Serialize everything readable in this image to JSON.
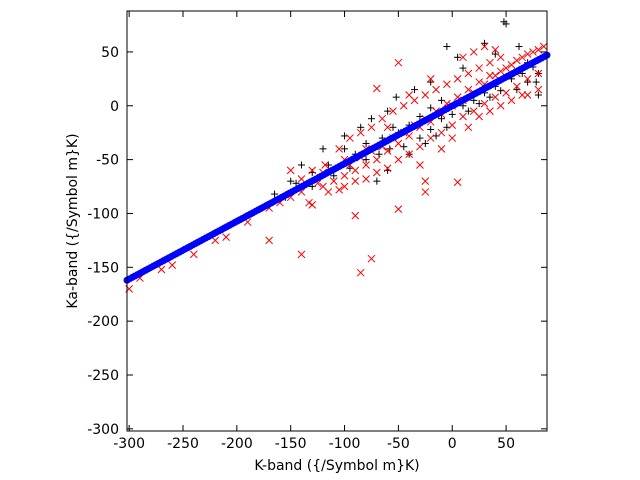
{
  "chart_data": {
    "type": "scatter",
    "title": "",
    "xlabel": "K-band ({/Symbol m}K)",
    "ylabel": "Ka-band ({/Symbol m}K)",
    "xlim": [
      -302,
      88
    ],
    "ylim": [
      -302,
      88
    ],
    "xticks": [
      -300,
      -250,
      -200,
      -150,
      -100,
      -50,
      0,
      50
    ],
    "yticks": [
      -300,
      -250,
      -200,
      -150,
      -100,
      -50,
      0,
      50
    ],
    "grid": false,
    "legend": "none",
    "series": [
      {
        "marker": "plus",
        "color": "#000000",
        "points": [
          [
            48,
            78
          ],
          [
            50,
            76
          ],
          [
            30,
            58
          ],
          [
            40,
            48
          ],
          [
            62,
            55
          ],
          [
            70,
            40
          ],
          [
            78,
            22
          ],
          [
            80,
            10
          ],
          [
            -5,
            55
          ],
          [
            5,
            45
          ],
          [
            10,
            35
          ],
          [
            -20,
            22
          ],
          [
            -35,
            15
          ],
          [
            -52,
            8
          ],
          [
            -60,
            -5
          ],
          [
            -75,
            -12
          ],
          [
            -85,
            -20
          ],
          [
            -100,
            -28
          ],
          [
            -120,
            -40
          ],
          [
            -140,
            -55
          ],
          [
            -150,
            -70
          ],
          [
            -165,
            -82
          ],
          [
            -155,
            -85
          ],
          [
            -130,
            -75
          ],
          [
            -110,
            -65
          ],
          [
            -95,
            -58
          ],
          [
            -80,
            -50
          ],
          [
            -68,
            -45
          ],
          [
            -58,
            -40
          ],
          [
            -45,
            -38
          ],
          [
            -30,
            -30
          ],
          [
            -20,
            -22
          ],
          [
            -10,
            -12
          ],
          [
            0,
            -8
          ],
          [
            10,
            0
          ],
          [
            20,
            5
          ],
          [
            30,
            12
          ],
          [
            40,
            18
          ],
          [
            55,
            25
          ],
          [
            65,
            30
          ],
          [
            75,
            36
          ],
          [
            -70,
            -70
          ],
          [
            -60,
            -60
          ],
          [
            -40,
            -45
          ],
          [
            -25,
            -35
          ],
          [
            -15,
            -28
          ],
          [
            -5,
            -20
          ],
          [
            15,
            -5
          ],
          [
            25,
            2
          ],
          [
            35,
            8
          ],
          [
            45,
            14
          ],
          [
            -90,
            -45
          ],
          [
            -115,
            -55
          ],
          [
            -130,
            -62
          ],
          [
            -145,
            -72
          ],
          [
            -50,
            -25
          ],
          [
            -40,
            -18
          ],
          [
            -30,
            -10
          ],
          [
            -20,
            -2
          ],
          [
            -10,
            5
          ],
          [
            60,
            15
          ],
          [
            70,
            22
          ],
          [
            80,
            30
          ],
          [
            -65,
            -30
          ],
          [
            -55,
            -20
          ],
          [
            -80,
            -35
          ],
          [
            -100,
            -40
          ]
        ]
      },
      {
        "marker": "x",
        "color": "#ff0000",
        "points": [
          [
            -300,
            -170
          ],
          [
            -290,
            -160
          ],
          [
            -270,
            -152
          ],
          [
            -260,
            -148
          ],
          [
            -240,
            -138
          ],
          [
            -220,
            -125
          ],
          [
            -210,
            -122
          ],
          [
            -190,
            -108
          ],
          [
            -170,
            -95
          ],
          [
            -170,
            -125
          ],
          [
            -160,
            -90
          ],
          [
            -150,
            -85
          ],
          [
            -140,
            -80
          ],
          [
            -133,
            -90
          ],
          [
            -130,
            -92
          ],
          [
            -120,
            -75
          ],
          [
            -110,
            -70
          ],
          [
            -100,
            -65
          ],
          [
            -90,
            -60
          ],
          [
            -80,
            -55
          ],
          [
            -70,
            -50
          ],
          [
            -60,
            -42
          ],
          [
            -50,
            -35
          ],
          [
            -40,
            -28
          ],
          [
            -30,
            -20
          ],
          [
            -20,
            -15
          ],
          [
            -10,
            -8
          ],
          [
            0,
            0
          ],
          [
            10,
            5
          ],
          [
            20,
            12
          ],
          [
            30,
            20
          ],
          [
            40,
            28
          ],
          [
            50,
            35
          ],
          [
            60,
            42
          ],
          [
            70,
            48
          ],
          [
            80,
            52
          ],
          [
            85,
            55
          ],
          [
            -140,
            -138
          ],
          [
            -90,
            -102
          ],
          [
            -85,
            -155
          ],
          [
            -75,
            -142
          ],
          [
            -50,
            -96
          ],
          [
            -25,
            -70
          ],
          [
            -25,
            -80
          ],
          [
            5,
            -71
          ],
          [
            -50,
            40
          ],
          [
            -70,
            16
          ],
          [
            -130,
            -60
          ],
          [
            -118,
            -55
          ],
          [
            -105,
            -40
          ],
          [
            -95,
            -30
          ],
          [
            -85,
            -25
          ],
          [
            -75,
            -20
          ],
          [
            -65,
            -12
          ],
          [
            -55,
            -5
          ],
          [
            -45,
            0
          ],
          [
            -35,
            5
          ],
          [
            -25,
            10
          ],
          [
            -15,
            15
          ],
          [
            -5,
            20
          ],
          [
            5,
            25
          ],
          [
            15,
            30
          ],
          [
            25,
            35
          ],
          [
            35,
            40
          ],
          [
            45,
            45
          ],
          [
            -100,
            -75
          ],
          [
            -90,
            -70
          ],
          [
            -80,
            -68
          ],
          [
            -70,
            -62
          ],
          [
            -60,
            -58
          ],
          [
            -50,
            -50
          ],
          [
            -40,
            -45
          ],
          [
            -30,
            -38
          ],
          [
            -20,
            -30
          ],
          [
            -10,
            -25
          ],
          [
            0,
            -18
          ],
          [
            10,
            -10
          ],
          [
            20,
            -5
          ],
          [
            30,
            2
          ],
          [
            40,
            8
          ],
          [
            50,
            12
          ],
          [
            60,
            18
          ],
          [
            70,
            25
          ],
          [
            80,
            30
          ],
          [
            -150,
            -60
          ],
          [
            -140,
            -68
          ],
          [
            -125,
            -72
          ],
          [
            -115,
            -80
          ],
          [
            -105,
            -78
          ],
          [
            -95,
            -55
          ],
          [
            -85,
            -48
          ],
          [
            -75,
            -42
          ],
          [
            -65,
            -38
          ],
          [
            -55,
            -30
          ],
          [
            -45,
            -25
          ],
          [
            -35,
            -18
          ],
          [
            -25,
            -12
          ],
          [
            -15,
            -5
          ],
          [
            -5,
            2
          ],
          [
            5,
            8
          ],
          [
            15,
            15
          ],
          [
            25,
            22
          ],
          [
            35,
            28
          ],
          [
            45,
            32
          ],
          [
            55,
            38
          ],
          [
            65,
            45
          ],
          [
            75,
            50
          ],
          [
            10,
            45
          ],
          [
            -20,
            25
          ],
          [
            -40,
            10
          ],
          [
            -60,
            -20
          ],
          [
            -80,
            -40
          ],
          [
            -100,
            -50
          ],
          [
            -120,
            -62
          ],
          [
            20,
            50
          ],
          [
            30,
            55
          ],
          [
            40,
            52
          ],
          [
            60,
            30
          ],
          [
            70,
            10
          ],
          [
            80,
            15
          ],
          [
            -10,
            -40
          ],
          [
            -30,
            -55
          ],
          [
            0,
            -30
          ],
          [
            15,
            -20
          ],
          [
            25,
            -10
          ],
          [
            35,
            -5
          ],
          [
            45,
            0
          ],
          [
            55,
            5
          ],
          [
            65,
            10
          ]
        ]
      },
      {
        "marker": "circle",
        "color": "#0000ff",
        "line": {
          "x0": -302,
          "y0": -162,
          "x1": 88,
          "y1": 47
        }
      }
    ]
  }
}
